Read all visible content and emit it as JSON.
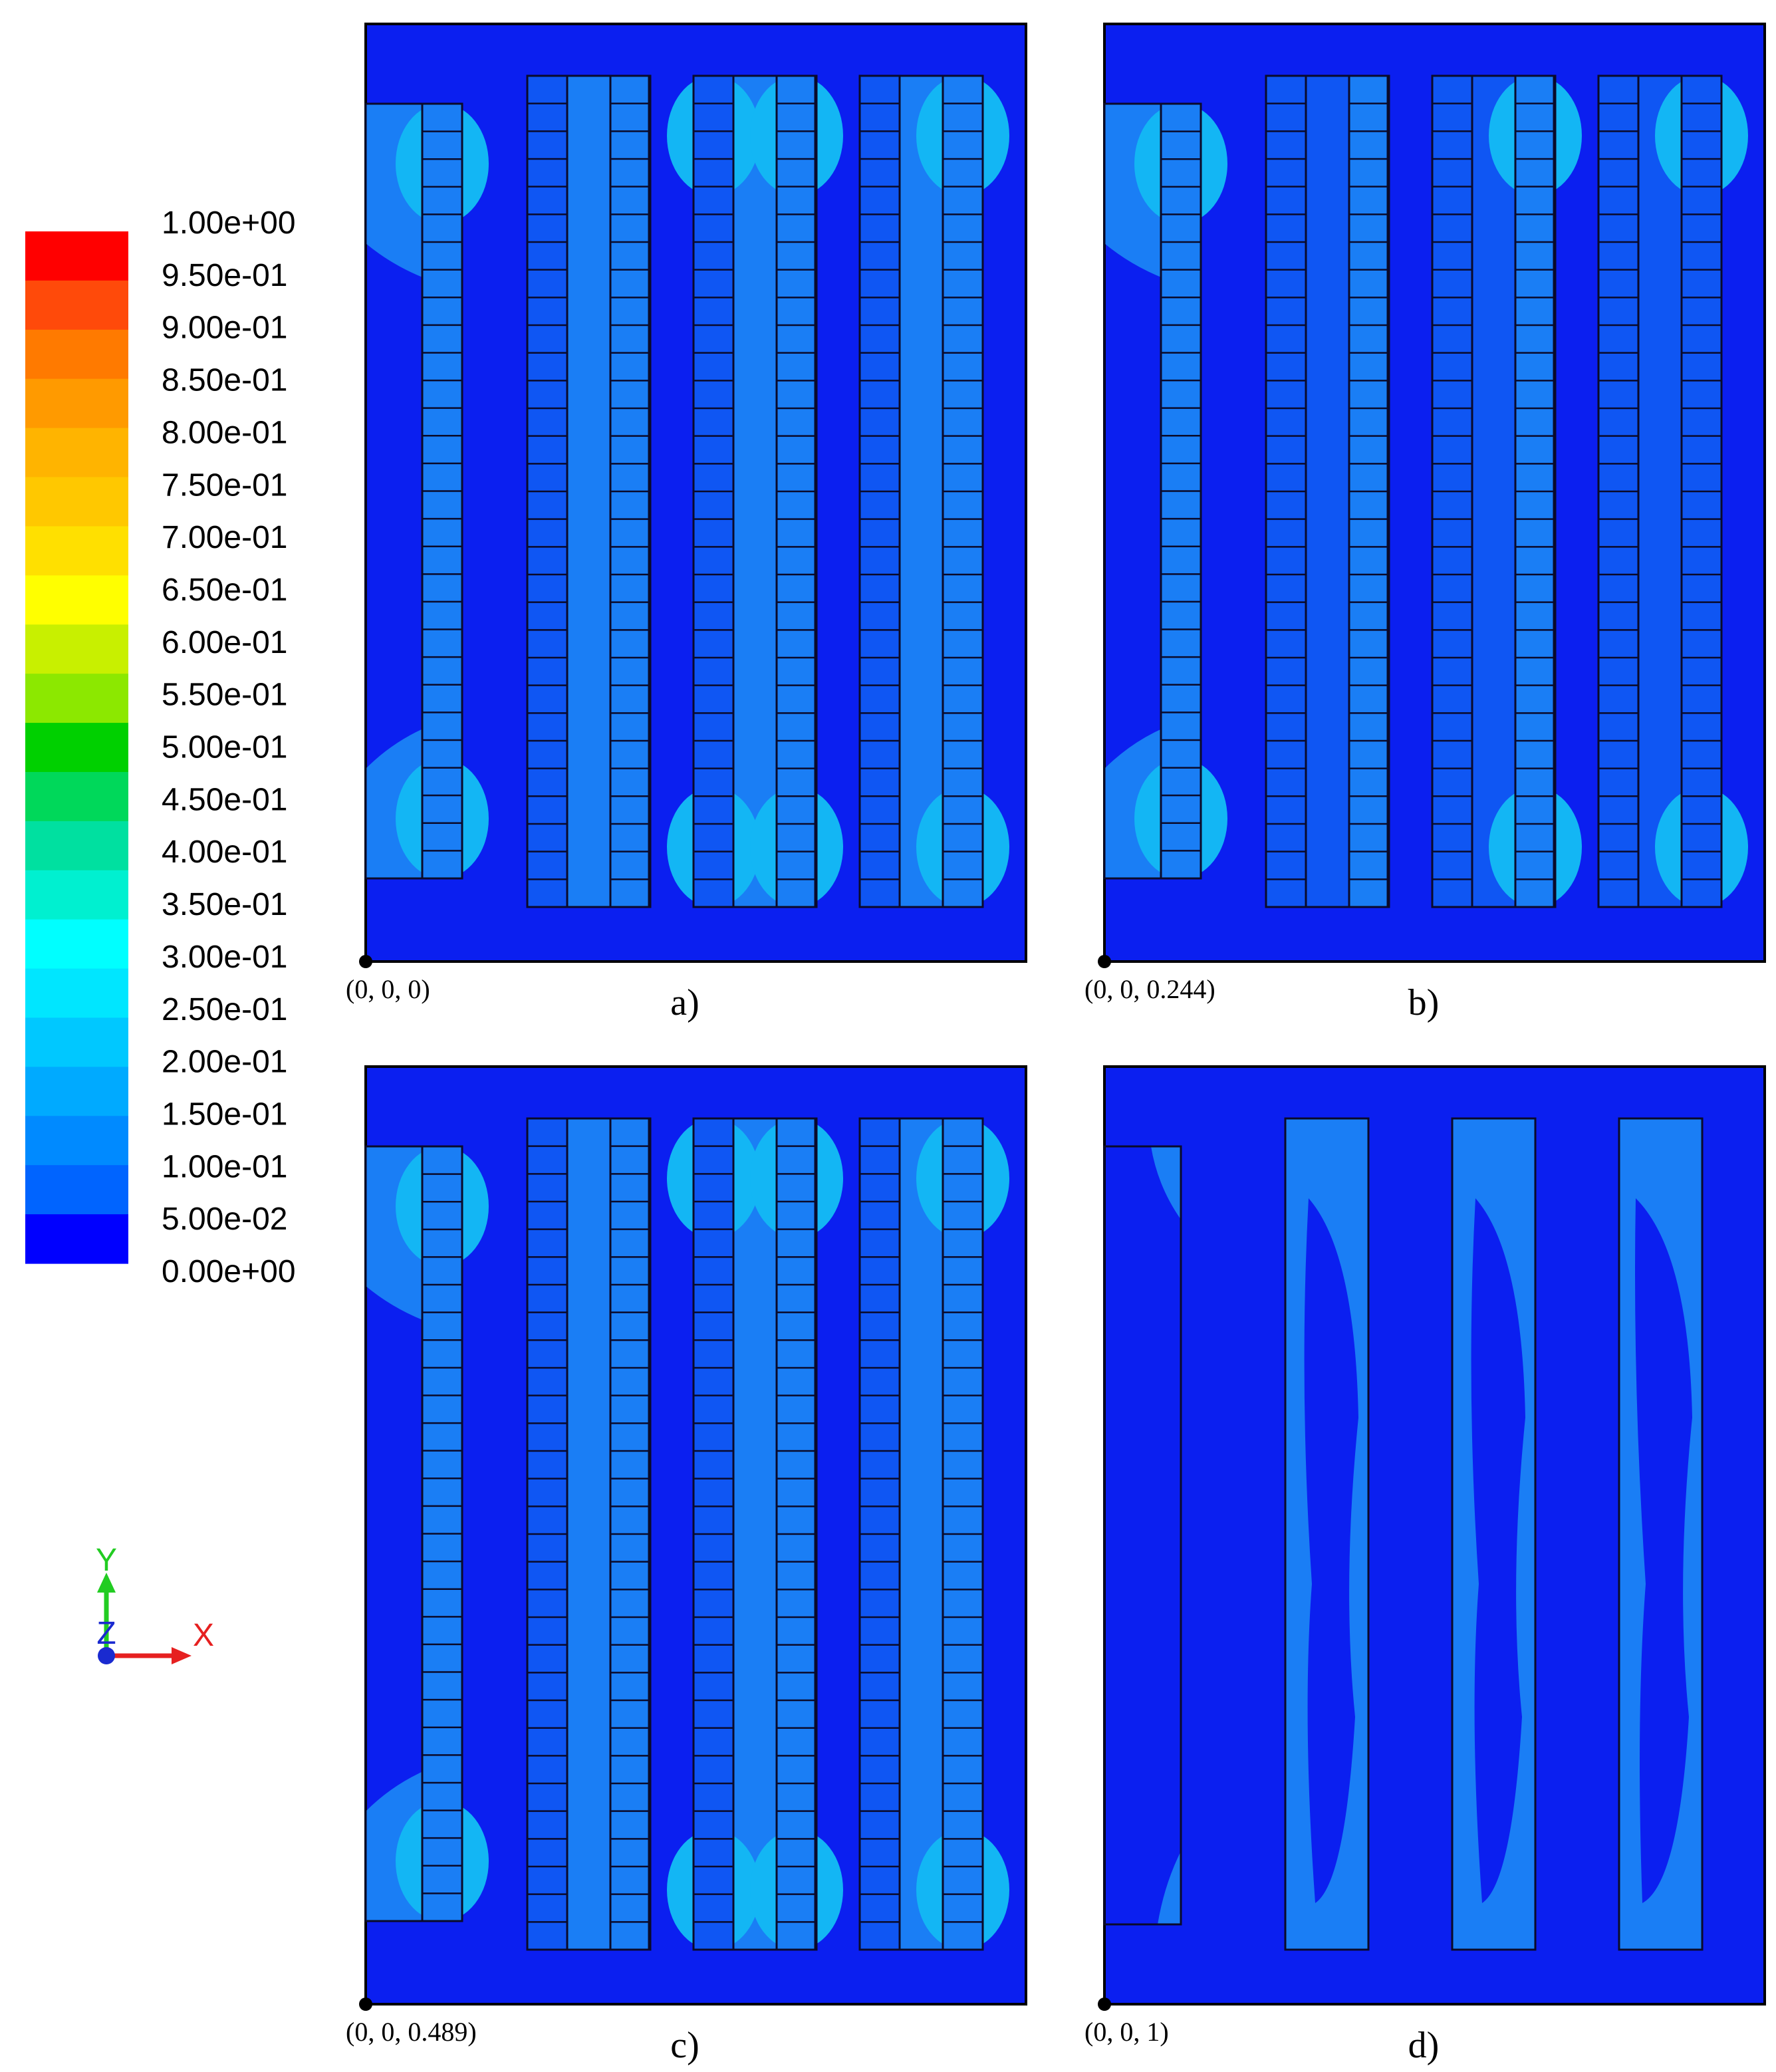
{
  "colormap": {
    "labels": [
      "1.00e+00",
      "9.50e-01",
      "9.00e-01",
      "8.50e-01",
      "8.00e-01",
      "7.50e-01",
      "7.00e-01",
      "6.50e-01",
      "6.00e-01",
      "5.50e-01",
      "5.00e-01",
      "4.50e-01",
      "4.00e-01",
      "3.50e-01",
      "3.00e-01",
      "2.50e-01",
      "2.00e-01",
      "1.50e-01",
      "1.00e-01",
      "5.00e-02",
      "0.00e+00"
    ],
    "colors": [
      "#ff0000",
      "#ff4a0a",
      "#ff7a00",
      "#ff9a00",
      "#ffb400",
      "#ffc800",
      "#ffe000",
      "#ffff00",
      "#c8f000",
      "#8ce800",
      "#00d000",
      "#00d85a",
      "#00e0a0",
      "#00f0d0",
      "#00ffff",
      "#00e6ff",
      "#00c8ff",
      "#00aaff",
      "#008aff",
      "#0064ff",
      "#0000ff"
    ]
  },
  "panels": [
    {
      "id": "a",
      "label": "a)",
      "coord": "(0, 0, 0)"
    },
    {
      "id": "b",
      "label": "b)",
      "coord": "(0, 0, 0.244)"
    },
    {
      "id": "c",
      "label": "c)",
      "coord": "(0, 0, 0.489)"
    },
    {
      "id": "d",
      "label": "d)",
      "coord": "(0, 0, 1)"
    }
  ],
  "axes": {
    "y": "Y",
    "z": "Z",
    "x": "X"
  },
  "colors": {
    "background": "#0b1ff0",
    "contour_light": "#1a7ef5",
    "contour_lighter": "#13b6f4",
    "contour_mid": "#0f56f3",
    "grid_line": "#0a0a2a"
  }
}
